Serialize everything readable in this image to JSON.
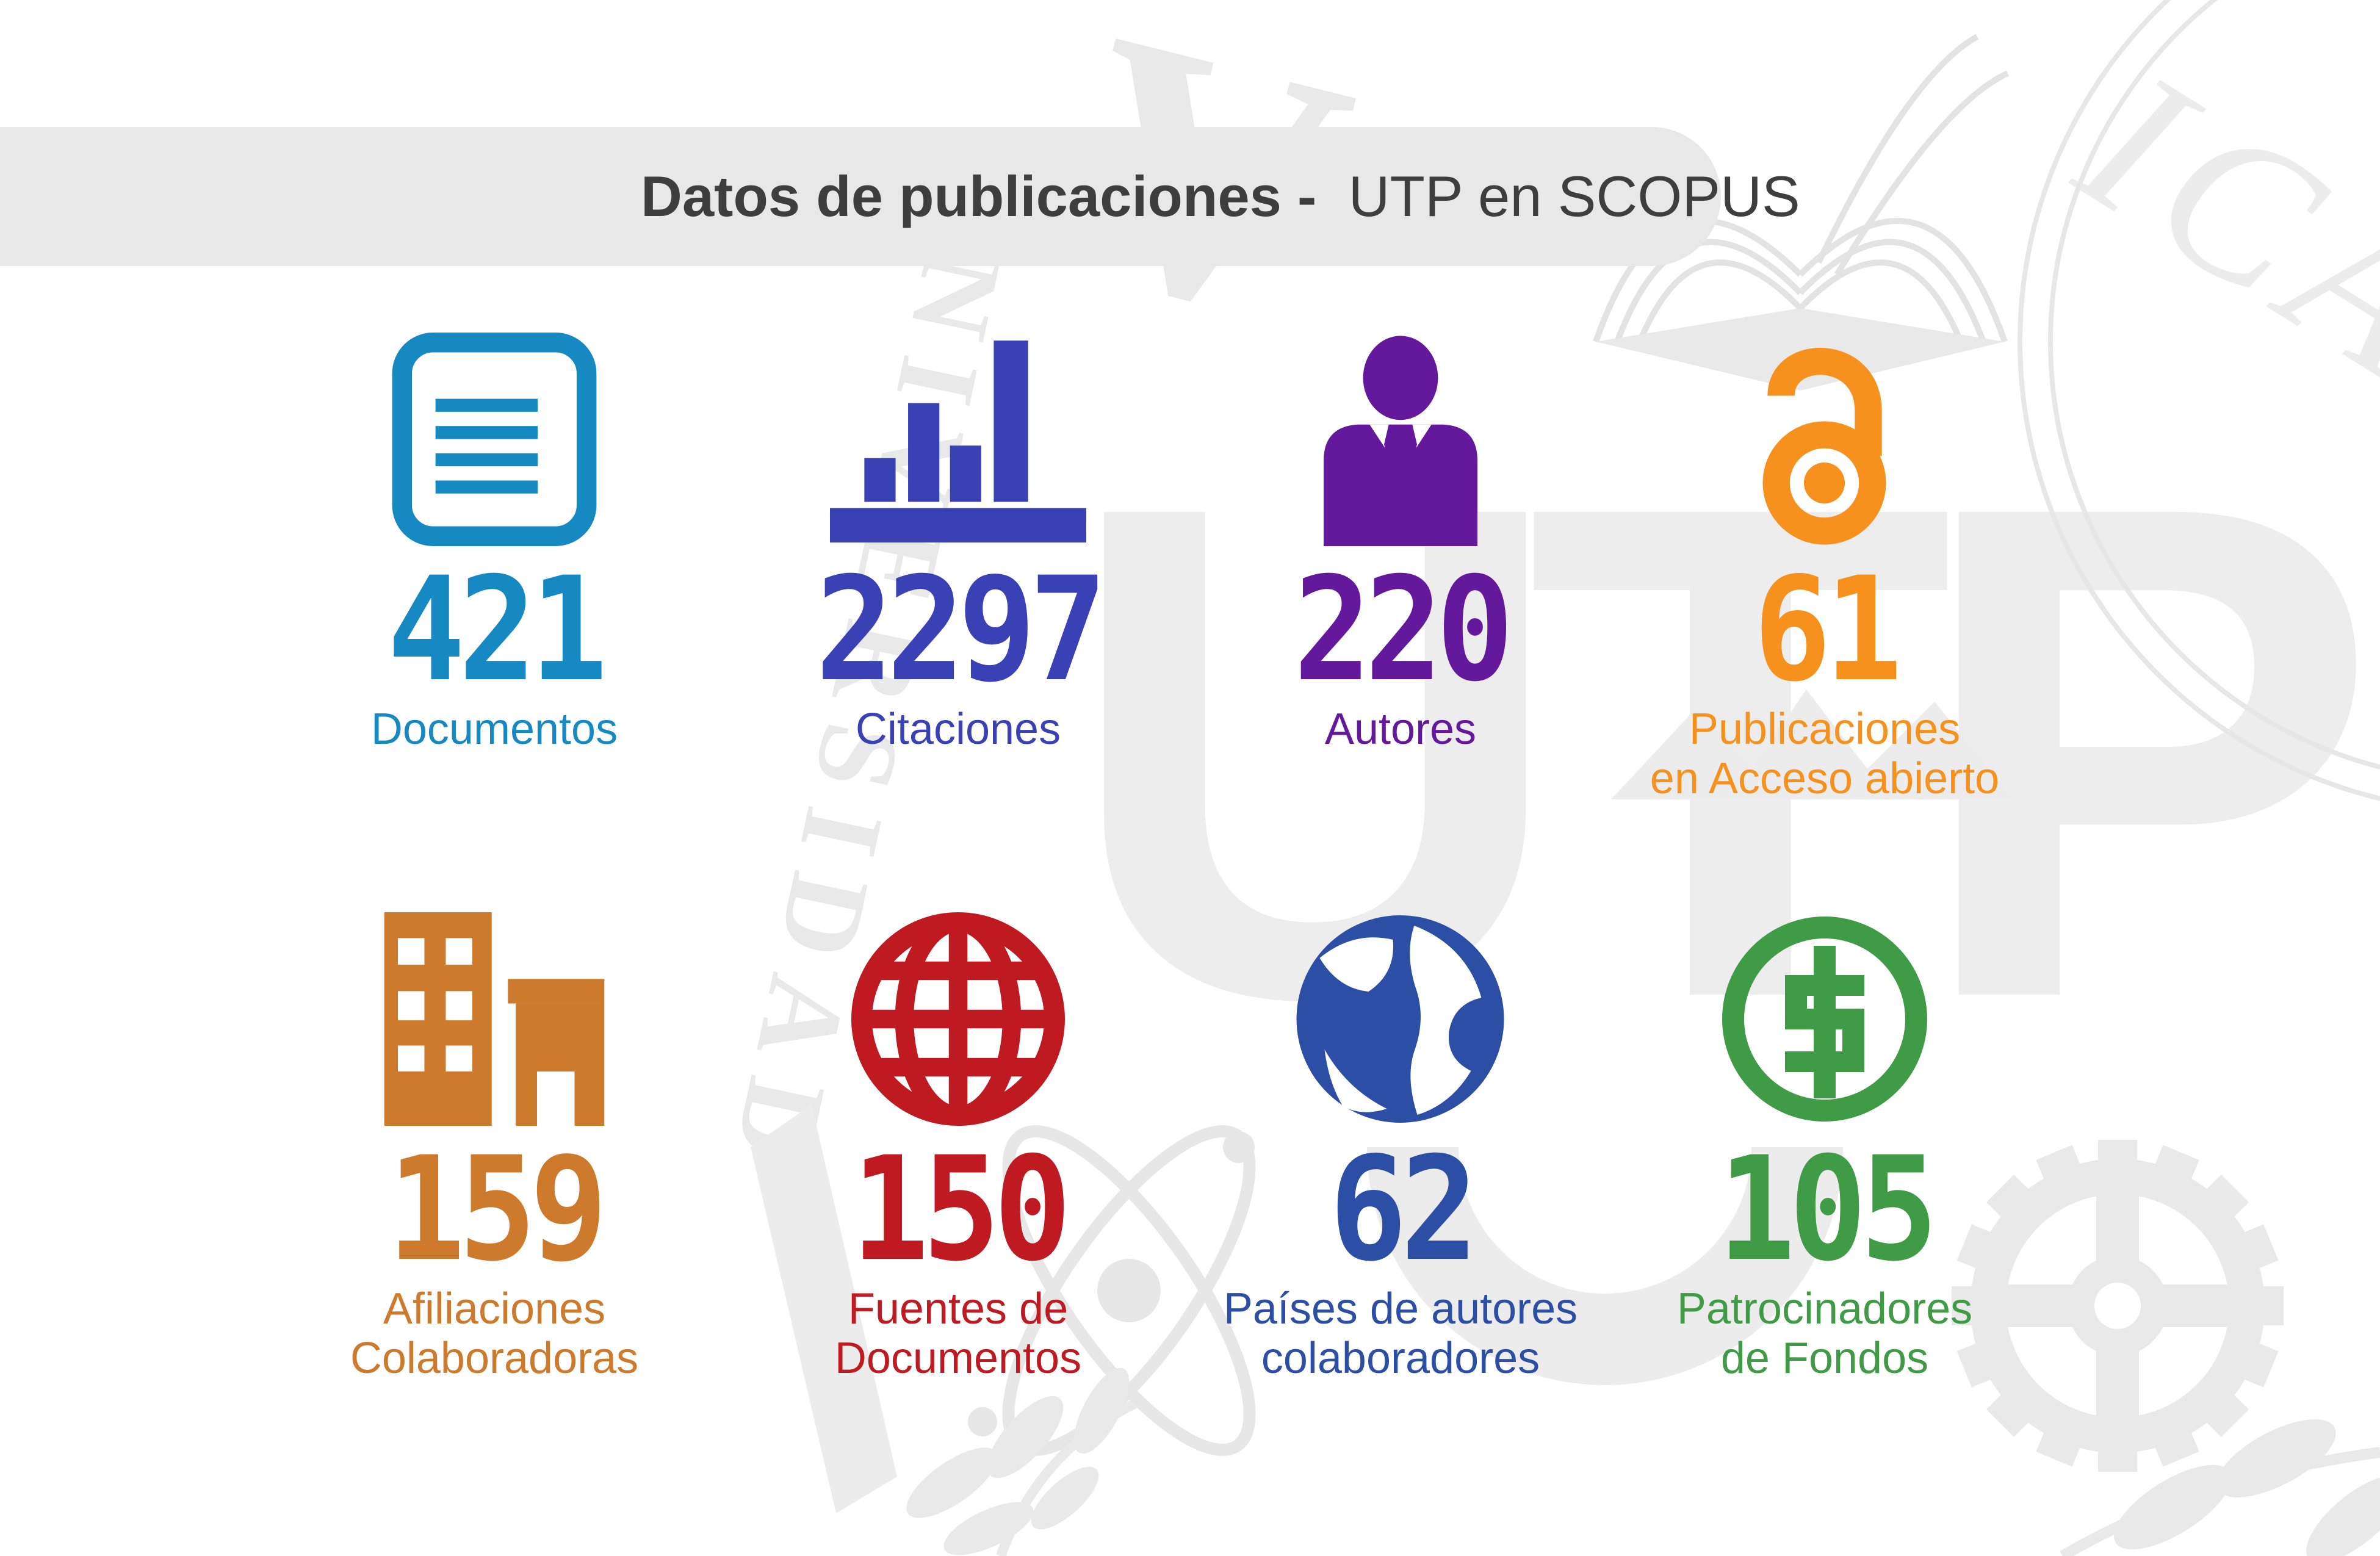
{
  "title": {
    "bold_part": "Datos de publicaciones -",
    "regular_part": "UTP en SCOPUS"
  },
  "stats": [
    {
      "id": "documentos",
      "value": "421",
      "label_lines": [
        "Documentos"
      ],
      "color": "#1689c3",
      "icon": "document-icon"
    },
    {
      "id": "citaciones",
      "value": "2297",
      "label_lines": [
        "Citaciones"
      ],
      "color": "#3a41b5",
      "icon": "bar-chart-icon"
    },
    {
      "id": "autores",
      "value": "220",
      "label_lines": [
        "Autores"
      ],
      "color": "#64189b",
      "icon": "author-icon"
    },
    {
      "id": "acceso-abierto",
      "value": "61",
      "label_lines": [
        "Publicaciones",
        "en Acceso abierto"
      ],
      "color": "#f6911e",
      "icon": "open-access-icon"
    },
    {
      "id": "afiliaciones",
      "value": "159",
      "label_lines": [
        "Afiliaciones",
        "Colaboradoras"
      ],
      "color": "#cd7a2d",
      "icon": "buildings-icon"
    },
    {
      "id": "fuentes",
      "value": "150",
      "label_lines": [
        "Fuentes de",
        "Documentos"
      ],
      "color": "#bf1a22",
      "icon": "globe-icon"
    },
    {
      "id": "paises",
      "value": "62",
      "label_lines": [
        "Países de autores",
        "colaboradores"
      ],
      "color": "#2c4fa5",
      "icon": "earth-icon"
    },
    {
      "id": "patrocinadores",
      "value": "105",
      "label_lines": [
        "Patrocinadores",
        "de Fondos"
      ],
      "color": "#3f9b45",
      "icon": "funding-dollar-icon"
    }
  ],
  "watermarks": {
    "diagonal_text": "UNIVERSIDAD",
    "monogram": "UTP",
    "letter": "V",
    "corner_text": "ICA"
  },
  "chart_data": {
    "type": "table",
    "title": "Datos de publicaciones - UTP en SCOPUS",
    "categories": [
      "Documentos",
      "Citaciones",
      "Autores",
      "Publicaciones en Acceso abierto",
      "Afiliaciones Colaboradoras",
      "Fuentes de Documentos",
      "Países de autores colaboradores",
      "Patrocinadores de Fondos"
    ],
    "values": [
      421,
      2297,
      220,
      61,
      159,
      150,
      62,
      105
    ]
  }
}
